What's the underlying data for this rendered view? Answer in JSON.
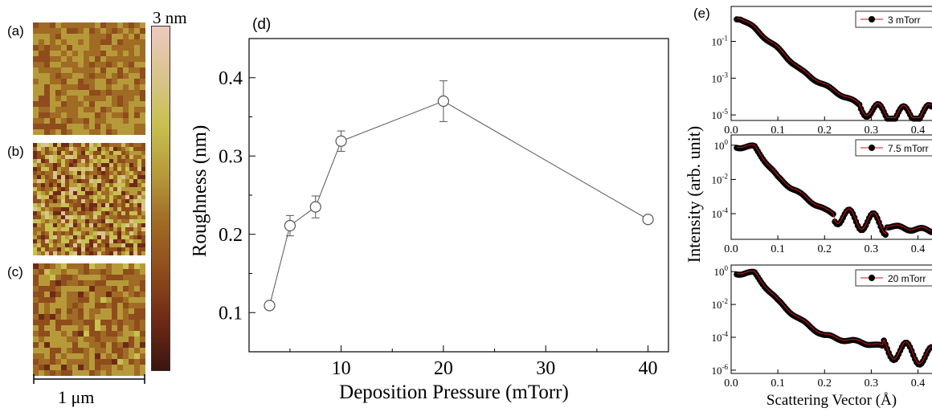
{
  "afm": {
    "panel_labels": [
      "(a)",
      "(b)",
      "(c)"
    ],
    "colorbar_max_label": "3 nm",
    "scale_bar_label": "1 μm",
    "colormap": [
      "#3a1510",
      "#6e2a16",
      "#8f4c1c",
      "#a06b24",
      "#b69a3a",
      "#c8c050",
      "#d9c48c",
      "#efc8c0"
    ]
  },
  "chart_data": [
    {
      "panel_label": "(d)",
      "type": "scatter",
      "title": "",
      "xlabel": "Deposition Pressure (mTorr)",
      "ylabel": "Roughness (nm)",
      "xlim": [
        1,
        42
      ],
      "ylim": [
        0.05,
        0.45
      ],
      "xticks": [
        10,
        20,
        30,
        40
      ],
      "yticks": [
        0.1,
        0.2,
        0.3,
        0.4
      ],
      "xtick_labels": [
        "10",
        "20",
        "30",
        "40"
      ],
      "ytick_labels": [
        "0.1",
        "0.2",
        "0.3",
        "0.4"
      ],
      "marker": "open-circle",
      "connect_points": true,
      "series": [
        {
          "x": [
            3,
            5,
            7.5,
            10,
            20,
            40
          ],
          "y": [
            0.109,
            0.211,
            0.235,
            0.319,
            0.37,
            0.219
          ],
          "yerr": [
            0.004,
            0.013,
            0.014,
            0.013,
            0.026,
            0.005
          ]
        }
      ],
      "color": "#555555"
    },
    {
      "panel_label": "(e)",
      "type": "line",
      "title": "",
      "xlabel": "Scattering Vector (Å)",
      "ylabel": "Intensity (arb. unit)",
      "yscale": "log",
      "xticks": [
        0.0,
        0.1,
        0.2,
        0.3,
        0.4
      ],
      "xtick_labels": [
        "0.0",
        "0.1",
        "0.2",
        "0.3",
        "0.4"
      ],
      "legend_placement": "top-right",
      "data_color": "#000000",
      "fit_color": "#e01010",
      "subplots": [
        {
          "legend": "3 mTorr",
          "xlim": [
            0,
            0.43
          ],
          "ylim_exp": [
            -5.3,
            0.9
          ],
          "ytick_exps": [
            -5,
            -3,
            -1
          ],
          "floor_exp": -5.4,
          "fringe_period": 0.054,
          "fringe_amp": 0.45,
          "decay_exps": [
            0.25,
            -0.3,
            -1.4,
            -2.6,
            -3.4,
            -4.1,
            -4.8,
            -5.0,
            -4.9
          ],
          "decay_x": [
            0.02,
            0.05,
            0.1,
            0.15,
            0.2,
            0.25,
            0.3,
            0.35,
            0.43
          ]
        },
        {
          "legend": "7.5 mTorr",
          "xlim": [
            0,
            0.43
          ],
          "ylim_exp": [
            -5.5,
            0.6
          ],
          "ytick_exps": [
            -4,
            -2,
            0
          ],
          "floor_exp": -5.0,
          "fringe_period": 0.052,
          "fringe_amp": 0.55,
          "decay_exps": [
            -0.1,
            -0.1,
            -1.9,
            -2.9,
            -3.8,
            -4.3,
            -4.5,
            -4.8,
            -5.0
          ],
          "decay_x": [
            0.02,
            0.05,
            0.1,
            0.15,
            0.2,
            0.25,
            0.3,
            0.35,
            0.43
          ]
        },
        {
          "legend": "20 mTorr",
          "xlim": [
            0,
            0.43
          ],
          "ylim_exp": [
            -6.2,
            0.4
          ],
          "ytick_exps": [
            -6,
            -4,
            -2,
            0
          ],
          "floor_exp": -5.6,
          "fringe_period": 0.055,
          "fringe_amp": 0.6,
          "decay_exps": [
            -0.1,
            -0.1,
            -1.8,
            -3.0,
            -3.9,
            -4.2,
            -4.4,
            -4.8,
            -5.2
          ],
          "decay_x": [
            0.02,
            0.05,
            0.1,
            0.15,
            0.2,
            0.25,
            0.3,
            0.35,
            0.43
          ]
        }
      ]
    }
  ]
}
